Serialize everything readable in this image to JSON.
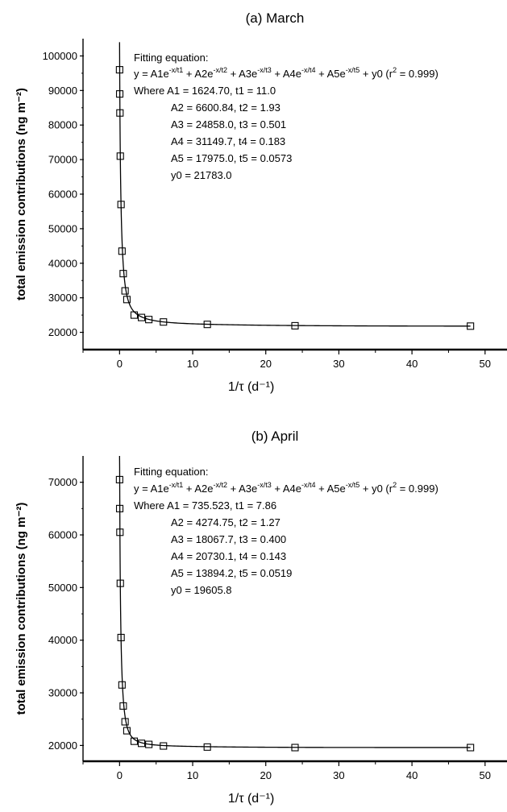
{
  "chart_data": [
    {
      "type": "scatter",
      "title": "(a) March",
      "xlabel": "1/τ (d⁻¹)",
      "ylabel": "total emission contributions (ng m⁻²)",
      "xlim": [
        -5,
        53
      ],
      "ylim": [
        15000,
        105000
      ],
      "xticks": [
        0,
        10,
        20,
        30,
        40,
        50
      ],
      "yticks": [
        20000,
        30000,
        40000,
        50000,
        60000,
        70000,
        80000,
        90000,
        100000
      ],
      "grid": false,
      "series": [
        {
          "marker": "open-square",
          "x": [
            0.0,
            0.02,
            0.05,
            0.1,
            0.2,
            0.33,
            0.5,
            0.75,
            1.0,
            2.0,
            3.0,
            4.0,
            6.0,
            12.0,
            24.0,
            48.0
          ],
          "y": [
            96000,
            89000,
            83500,
            71000,
            57000,
            43500,
            37000,
            32000,
            29500,
            25000,
            24300,
            23700,
            23000,
            22300,
            21900,
            21800
          ]
        }
      ],
      "fit": {
        "params": {
          "A": [
            1624.7,
            6600.84,
            24858.0,
            31149.7,
            17975.0
          ],
          "t": [
            11.0,
            1.93,
            0.501,
            0.183,
            0.0573
          ],
          "y0": 21783.0
        }
      },
      "annotation": {
        "heading": "Fitting equation:",
        "eq_main": "y = A1e",
        "e1": "-x/t1",
        "p2": " + A2e",
        "e2": "-x/t2",
        "p3": " + A3e",
        "e3": "-x/t3",
        "p4": " + A4e",
        "e4": "-x/t4",
        "p5": " + A5e",
        "e5": "-x/t5",
        "p6": " + y0 (r",
        "r_sup": "2",
        "p7": " = 0.999)",
        "lines": [
          "Where A1 = 1624.70, t1 = 11.0",
          "A2 = 6600.84, t2 = 1.93",
          "A3 = 24858.0, t3 = 0.501",
          "A4 = 31149.7, t4 = 0.183",
          "A5 = 17975.0, t5 = 0.0573",
          "y0 = 21783.0"
        ]
      }
    },
    {
      "type": "scatter",
      "title": "(b) April",
      "xlabel": "1/τ (d⁻¹)",
      "ylabel": "total emission contributions (ng m⁻²)",
      "xlim": [
        -5,
        53
      ],
      "ylim": [
        17000,
        75000
      ],
      "xticks": [
        0,
        10,
        20,
        30,
        40,
        50
      ],
      "yticks": [
        20000,
        30000,
        40000,
        50000,
        60000,
        70000
      ],
      "grid": false,
      "series": [
        {
          "marker": "open-square",
          "x": [
            0.0,
            0.02,
            0.05,
            0.1,
            0.2,
            0.33,
            0.5,
            0.75,
            1.0,
            2.0,
            3.0,
            4.0,
            6.0,
            12.0,
            24.0,
            48.0
          ],
          "y": [
            70500,
            65000,
            60500,
            50800,
            40500,
            31500,
            27500,
            24500,
            22800,
            20800,
            20400,
            20200,
            19900,
            19700,
            19600,
            19600
          ]
        }
      ],
      "fit": {
        "params": {
          "A": [
            735.523,
            4274.75,
            18067.7,
            20730.1,
            13894.2
          ],
          "t": [
            7.86,
            1.27,
            0.4,
            0.143,
            0.0519
          ],
          "y0": 19605.8
        }
      },
      "annotation": {
        "heading": "Fitting equation:",
        "eq_main": "y = A1e",
        "e1": "-x/t1",
        "p2": " + A2e",
        "e2": "-x/t2",
        "p3": " + A3e",
        "e3": "-x/t3",
        "p4": " + A4e",
        "e4": "-x/t4",
        "p5": " + A5e",
        "e5": "-x/t5",
        "p6": " + y0 (r",
        "r_sup": "2",
        "p7": " = 0.999)",
        "lines": [
          "Where A1 = 735.523, t1 = 7.86",
          "A2 = 4274.75, t2 = 1.27",
          "A3 = 18067.7, t3 = 0.400",
          "A4 = 20730.1, t4 = 0.143",
          "A5 = 13894.2, t5 = 0.0519",
          "y0 = 19605.8"
        ]
      }
    }
  ]
}
